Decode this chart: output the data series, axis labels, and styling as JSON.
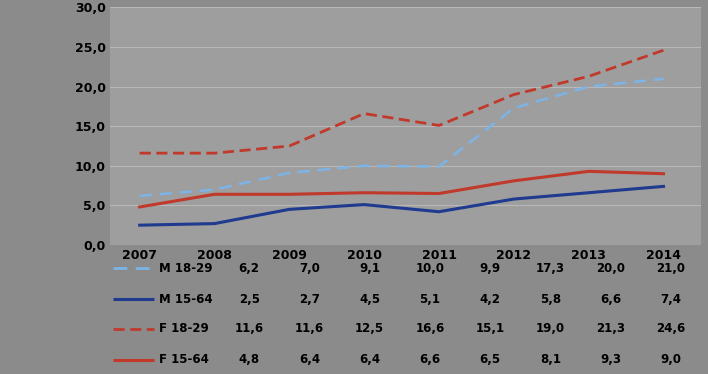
{
  "years": [
    2007,
    2008,
    2009,
    2010,
    2011,
    2012,
    2013,
    2014
  ],
  "M_18_29": [
    6.2,
    7.0,
    9.1,
    10.0,
    9.9,
    17.3,
    20.0,
    21.0
  ],
  "M_15_64": [
    2.5,
    2.7,
    4.5,
    5.1,
    4.2,
    5.8,
    6.6,
    7.4
  ],
  "F_18_29": [
    11.6,
    11.6,
    12.5,
    16.6,
    15.1,
    19.0,
    21.3,
    24.6
  ],
  "F_15_64": [
    4.8,
    6.4,
    6.4,
    6.6,
    6.5,
    8.1,
    9.3,
    9.0
  ],
  "color_blue_light": "#7CB4E8",
  "color_blue_dark": "#1F3A8F",
  "color_red_dark": "#C0392B",
  "color_red_solid": "#C0392B",
  "bg_color": "#8B8B8B",
  "plot_bg_color": "#9E9E9E",
  "grid_color": "#B8B8B8",
  "ylim": [
    0,
    30
  ],
  "yticks": [
    0.0,
    5.0,
    10.0,
    15.0,
    20.0,
    25.0,
    30.0
  ],
  "legend_labels": [
    "M 18-29",
    "M 15-64",
    "F 18-29",
    "F 15-64"
  ],
  "table_rows": {
    "M 18-29": [
      6.2,
      7.0,
      9.1,
      10.0,
      9.9,
      17.3,
      20.0,
      21.0
    ],
    "M 15-64": [
      2.5,
      2.7,
      4.5,
      5.1,
      4.2,
      5.8,
      6.6,
      7.4
    ],
    "F 18-29": [
      11.6,
      11.6,
      12.5,
      16.6,
      15.1,
      19.0,
      21.3,
      24.6
    ],
    "F 15-64": [
      4.8,
      6.4,
      6.4,
      6.6,
      6.5,
      8.1,
      9.3,
      9.0
    ]
  }
}
